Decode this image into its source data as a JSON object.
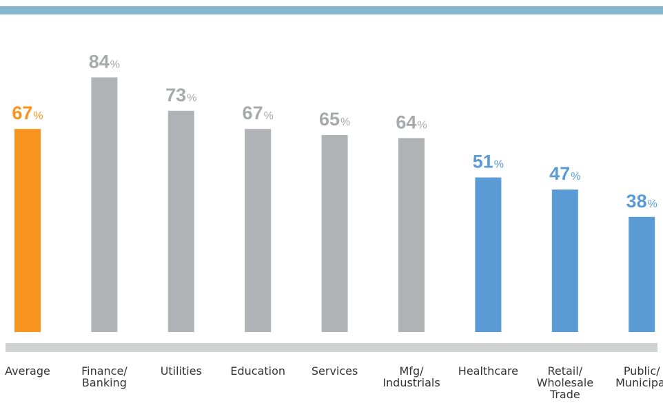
{
  "colors": {
    "top_rule": "#84b7cf",
    "baseline": "#d0d1d3",
    "average": "#f7931e",
    "above": "#b1b2b5",
    "below": "#5b9bd5",
    "average_label": "#f7931e",
    "above_label": "#a7a9ac",
    "below_label": "#5b9bd5",
    "category_text": "#333333"
  },
  "chart_data": {
    "type": "bar",
    "title": "",
    "xlabel": "",
    "ylabel": "",
    "ylim": [
      0,
      100
    ],
    "grid": false,
    "value_suffix": "%",
    "categories": [
      "Average",
      "Finance/\nBanking",
      "Utilities",
      "Education",
      "Services",
      "Mfg/\nIndustrials",
      "Healthcare",
      "Retail/\nWholesale\nTrade",
      "Public/\nMunicipal"
    ],
    "values": [
      67,
      84,
      73,
      67,
      65,
      64,
      51,
      47,
      38
    ],
    "groups": [
      "average",
      "above",
      "above",
      "above",
      "above",
      "above",
      "below",
      "below",
      "below"
    ]
  }
}
